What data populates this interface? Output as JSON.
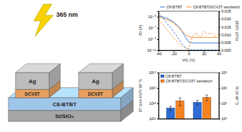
{
  "diagram": {
    "light": "365 nm",
    "electrodes": [
      {
        "metal": "Ag",
        "interlayer": "DCV3T"
      },
      {
        "metal": "Ag",
        "interlayer": "DCV3T"
      }
    ],
    "semiconductor": "C8-BTBT",
    "substrate": "Si/SiO₂"
  },
  "chart_data": [
    {
      "type": "line",
      "x_label": "VG (V)",
      "y_label": "-ID (A)",
      "y2_label": "|ID|½ (A½)",
      "x": [
        -40,
        -35,
        -30,
        -25,
        -20,
        -15,
        -10,
        -5,
        0,
        5,
        10,
        15,
        20,
        25,
        30,
        35,
        40
      ],
      "xlim": [
        -40,
        40
      ],
      "xticks": [
        -40,
        -20,
        0,
        20,
        40
      ],
      "ylim": [
        1e-11,
        0.0001
      ],
      "yticks": [
        {
          "value": 1e-11,
          "label": "10⁻¹¹"
        },
        {
          "value": 1e-09,
          "label": "10⁻⁹"
        },
        {
          "value": 1e-07,
          "label": "10⁻⁷"
        },
        {
          "value": 1e-05,
          "label": "10⁻⁵"
        }
      ],
      "y2lim": [
        0,
        0.025
      ],
      "y2ticks": [
        {
          "value": 0,
          "label": "0.000"
        },
        0.005,
        {
          "value": 0.01,
          "label": "0.010"
        },
        0.015,
        {
          "value": 0.02,
          "label": "0.020"
        },
        0.025
      ],
      "log": "y",
      "legend": "top",
      "series": [
        {
          "name": "C8-BTBT",
          "color": "#2d6bd6",
          "line_style": "solid",
          "values": [
            1.5e-05,
            1e-05,
            6e-06,
            3e-06,
            1.2e-06,
            3e-07,
            5e-08,
            3e-09,
            3e-10,
            2e-10,
            2e-10,
            2e-10,
            2e-10,
            2e-10,
            2e-10,
            2e-10,
            2e-10
          ]
        },
        {
          "name": "C8-BTBT/DCV3T sandwich",
          "color": "#f5821f",
          "line_style": "solid",
          "values": [
            1e-05,
            6e-06,
            3.5e-06,
            1.8e-06,
            7e-07,
            2e-07,
            4e-08,
            8e-09,
            3e-09,
            2e-09,
            2e-09,
            2e-09,
            2e-09,
            2e-09,
            2e-09,
            2e-09,
            2e-09
          ]
        },
        {
          "color": "#2d6bd6",
          "line_style": "dashed",
          "axis": "y2",
          "values": [
            0.024,
            0.021,
            0.018,
            0.015,
            0.012,
            0.0085,
            0.005,
            0.002,
            0.0005,
            0.0003,
            0.0003,
            0.0003,
            0.0003,
            0.0003,
            0.0003,
            0.0003,
            0.0003
          ]
        },
        {
          "color": "#f5821f",
          "line_style": "dashed",
          "axis": "y2",
          "values": [
            0.02,
            0.017,
            0.014,
            0.011,
            0.008,
            0.0055,
            0.003,
            0.0015,
            0.001,
            0.009,
            0.011,
            0.008,
            0.012,
            0.01,
            0.011,
            0.009,
            0.0105
          ]
        }
      ]
    },
    {
      "type": "bar",
      "y_label": "D* (cm Hz½ W⁻¹)",
      "y2_label": "R (A W⁻¹)",
      "categories": [
        null,
        null
      ],
      "ylim": [
        100000000000.0,
        100000000000000.0
      ],
      "yticks": [
        {
          "value": 100000000000.0,
          "label": "10¹¹"
        },
        {
          "value": 1000000000000.0,
          "label": "10¹²"
        },
        {
          "value": 10000000000000.0,
          "label": "10¹³"
        },
        {
          "value": 100000000000000.0,
          "label": "10¹⁴"
        }
      ],
      "y2lim": [
        1,
        1000
      ],
      "y2ticks": [
        {
          "value": 1,
          "label": "10⁰"
        },
        {
          "value": 10,
          "label": "10¹"
        },
        {
          "value": 100,
          "label": "10²"
        },
        {
          "value": 1000,
          "label": "10³"
        }
      ],
      "log": true,
      "legend": "upper left",
      "series": [
        {
          "name": "C8-BTBT",
          "color": "#2d6bd6",
          "values": [
            500000000000.0,
            null
          ],
          "errors": [
            150000000000.0,
            null
          ]
        },
        {
          "name": "C8-BTBT/DCV3T sandwich",
          "color": "#f5821f",
          "values": [
            1500000000000.0,
            null
          ],
          "errors": [
            800000000000.0,
            null
          ]
        },
        {
          "color": "#2d6bd6",
          "axis": "y2",
          "values": [
            null,
            12
          ],
          "errors": [
            null,
            4
          ]
        },
        {
          "color": "#f5821f",
          "axis": "y2",
          "values": [
            null,
            25
          ],
          "errors": [
            null,
            10
          ]
        }
      ]
    }
  ]
}
